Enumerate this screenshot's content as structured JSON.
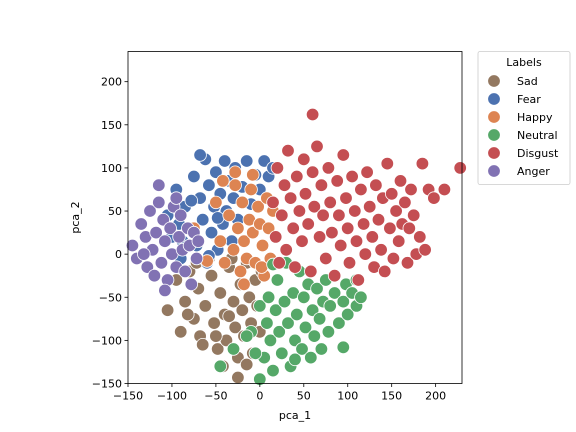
{
  "chart_data": {
    "type": "scatter",
    "title": "",
    "xlabel": "pca_1",
    "ylabel": "pca_2",
    "xlim": [
      -150,
      230
    ],
    "ylim": [
      -150,
      235
    ],
    "xticks": [
      "−150",
      "−100",
      "−50",
      "0",
      "50",
      "100",
      "150",
      "200"
    ],
    "yticks": [
      "−150",
      "−100",
      "−50",
      "0",
      "50",
      "100",
      "150",
      "200"
    ],
    "xtick_values": [
      -150,
      -100,
      -50,
      0,
      50,
      100,
      150,
      200
    ],
    "ytick_values": [
      -150,
      -100,
      -50,
      0,
      50,
      100,
      150,
      200
    ],
    "grid": false,
    "legend_title": "Labels",
    "legend_placement": "outside-top-right",
    "series": [
      {
        "name": "Sad",
        "color": "#937860",
        "points": [
          [
            -105,
            -65
          ],
          [
            -95,
            -30
          ],
          [
            -90,
            -90
          ],
          [
            -85,
            -55
          ],
          [
            -80,
            -20
          ],
          [
            -75,
            -75
          ],
          [
            -70,
            -40
          ],
          [
            -68,
            -95
          ],
          [
            -62,
            -60
          ],
          [
            -55,
            -25
          ],
          [
            -52,
            -80
          ],
          [
            -48,
            -110
          ],
          [
            -45,
            -45
          ],
          [
            -40,
            -70
          ],
          [
            -38,
            -100
          ],
          [
            -35,
            -15
          ],
          [
            -30,
            -55
          ],
          [
            -28,
            -85
          ],
          [
            -25,
            -120
          ],
          [
            -22,
            -35
          ],
          [
            -20,
            -65
          ],
          [
            -18,
            -95
          ],
          [
            -15,
            -10
          ],
          [
            -12,
            -50
          ],
          [
            -10,
            -80
          ],
          [
            -8,
            -115
          ],
          [
            -5,
            -30
          ],
          [
            -3,
            -60
          ],
          [
            0,
            -90
          ],
          [
            2,
            -20
          ],
          [
            -58,
            -5
          ],
          [
            -65,
            -105
          ],
          [
            -82,
            -70
          ],
          [
            -42,
            -130
          ],
          [
            -25,
            -143
          ],
          [
            -32,
            -5
          ],
          [
            -15,
            -128
          ],
          [
            -72,
            -10
          ],
          [
            -50,
            -95
          ],
          [
            -35,
            -72
          ]
        ]
      },
      {
        "name": "Fear",
        "color": "#4c72b0",
        "points": [
          [
            -105,
            45
          ],
          [
            -100,
            20
          ],
          [
            -95,
            75
          ],
          [
            -90,
            -5
          ],
          [
            -85,
            55
          ],
          [
            -80,
            30
          ],
          [
            -75,
            90
          ],
          [
            -72,
            10
          ],
          [
            -68,
            65
          ],
          [
            -65,
            40
          ],
          [
            -62,
            110
          ],
          [
            -60,
            -10
          ],
          [
            -58,
            80
          ],
          [
            -55,
            25
          ],
          [
            -52,
            55
          ],
          [
            -50,
            95
          ],
          [
            -48,
            5
          ],
          [
            -45,
            70
          ],
          [
            -42,
            35
          ],
          [
            -40,
            108
          ],
          [
            -38,
            50
          ],
          [
            -35,
            85
          ],
          [
            -32,
            15
          ],
          [
            -30,
            65
          ],
          [
            -28,
            100
          ],
          [
            -25,
            40
          ],
          [
            -20,
            78
          ],
          [
            -15,
            108
          ],
          [
            -10,
            58
          ],
          [
            -5,
            92
          ],
          [
            0,
            75
          ],
          [
            5,
            108
          ],
          [
            10,
            90
          ],
          [
            15,
            100
          ],
          [
            -68,
            115
          ],
          [
            -48,
            42
          ],
          [
            -88,
            15
          ],
          [
            -78,
            62
          ],
          [
            -58,
            -2
          ],
          [
            -92,
            35
          ]
        ]
      },
      {
        "name": "Happy",
        "color": "#dd8452",
        "points": [
          [
            -75,
            30
          ],
          [
            -60,
            -8
          ],
          [
            -50,
            60
          ],
          [
            -45,
            15
          ],
          [
            -40,
            -10
          ],
          [
            -35,
            45
          ],
          [
            -30,
            5
          ],
          [
            -28,
            80
          ],
          [
            -25,
            30
          ],
          [
            -22,
            -20
          ],
          [
            -20,
            60
          ],
          [
            -18,
            15
          ],
          [
            -15,
            -5
          ],
          [
            -12,
            40
          ],
          [
            -10,
            75
          ],
          [
            -8,
            25
          ],
          [
            -5,
            -10
          ],
          [
            -2,
            55
          ],
          [
            0,
            35
          ],
          [
            3,
            10
          ],
          [
            5,
            -25
          ],
          [
            8,
            65
          ],
          [
            10,
            30
          ],
          [
            12,
            -5
          ],
          [
            15,
            50
          ],
          [
            -28,
            95
          ],
          [
            -42,
            85
          ],
          [
            -18,
            -35
          ],
          [
            2,
            -15
          ],
          [
            -8,
            92
          ]
        ]
      },
      {
        "name": "Neutral",
        "color": "#55a868",
        "points": [
          [
            -45,
            -130
          ],
          [
            -30,
            -110
          ],
          [
            -10,
            -90
          ],
          [
            0,
            -60
          ],
          [
            0,
            -145
          ],
          [
            5,
            -120
          ],
          [
            8,
            -80
          ],
          [
            10,
            -50
          ],
          [
            12,
            -100
          ],
          [
            15,
            -135
          ],
          [
            18,
            -65
          ],
          [
            20,
            -30
          ],
          [
            22,
            -90
          ],
          [
            25,
            -115
          ],
          [
            28,
            -55
          ],
          [
            30,
            -10
          ],
          [
            32,
            -80
          ],
          [
            35,
            -130
          ],
          [
            38,
            -45
          ],
          [
            40,
            -100
          ],
          [
            42,
            -70
          ],
          [
            45,
            -20
          ],
          [
            48,
            -110
          ],
          [
            50,
            -50
          ],
          [
            52,
            -85
          ],
          [
            55,
            -35
          ],
          [
            58,
            -120
          ],
          [
            60,
            -65
          ],
          [
            62,
            -95
          ],
          [
            65,
            -40
          ],
          [
            68,
            -75
          ],
          [
            70,
            -110
          ],
          [
            72,
            -55
          ],
          [
            75,
            -30
          ],
          [
            78,
            -90
          ],
          [
            80,
            -60
          ],
          [
            85,
            -45
          ],
          [
            90,
            -80
          ],
          [
            95,
            -55
          ],
          [
            98,
            -35
          ],
          [
            100,
            -70
          ],
          [
            105,
            -45
          ],
          [
            110,
            -60
          ],
          [
            115,
            -50
          ],
          [
            -5,
            -115
          ],
          [
            -15,
            -95
          ],
          [
            15,
            -12
          ],
          [
            40,
            -122
          ],
          [
            95,
            -108
          ],
          [
            110,
            -30
          ]
        ]
      },
      {
        "name": "Disgust",
        "color": "#c44e52",
        "points": [
          [
            15,
            60
          ],
          [
            18,
            20
          ],
          [
            20,
            100
          ],
          [
            22,
            -10
          ],
          [
            25,
            45
          ],
          [
            28,
            80
          ],
          [
            30,
            5
          ],
          [
            32,
            120
          ],
          [
            35,
            65
          ],
          [
            38,
            30
          ],
          [
            40,
            -15
          ],
          [
            42,
            90
          ],
          [
            45,
            50
          ],
          [
            48,
            15
          ],
          [
            50,
            110
          ],
          [
            52,
            70
          ],
          [
            55,
            35
          ],
          [
            58,
            -20
          ],
          [
            60,
            95
          ],
          [
            62,
            55
          ],
          [
            65,
            125
          ],
          [
            68,
            20
          ],
          [
            70,
            80
          ],
          [
            72,
            45
          ],
          [
            75,
            -5
          ],
          [
            78,
            100
          ],
          [
            80,
            60
          ],
          [
            82,
            25
          ],
          [
            85,
            -25
          ],
          [
            88,
            85
          ],
          [
            90,
            45
          ],
          [
            92,
            10
          ],
          [
            95,
            115
          ],
          [
            98,
            65
          ],
          [
            100,
            30
          ],
          [
            102,
            -10
          ],
          [
            105,
            90
          ],
          [
            108,
            50
          ],
          [
            110,
            15
          ],
          [
            112,
            -30
          ],
          [
            115,
            75
          ],
          [
            118,
            35
          ],
          [
            120,
            0
          ],
          [
            122,
            95
          ],
          [
            125,
            55
          ],
          [
            128,
            20
          ],
          [
            130,
            -15
          ],
          [
            132,
            80
          ],
          [
            135,
            40
          ],
          [
            138,
            5
          ],
          [
            140,
            65
          ],
          [
            142,
            -20
          ],
          [
            145,
            105
          ],
          [
            148,
            30
          ],
          [
            150,
            70
          ],
          [
            152,
            -5
          ],
          [
            155,
            50
          ],
          [
            158,
            15
          ],
          [
            160,
            85
          ],
          [
            162,
            35
          ],
          [
            165,
            60
          ],
          [
            168,
            -10
          ],
          [
            170,
            30
          ],
          [
            172,
            75
          ],
          [
            175,
            45
          ],
          [
            178,
            0
          ],
          [
            182,
            20
          ],
          [
            185,
            105
          ],
          [
            188,
            5
          ],
          [
            192,
            75
          ],
          [
            198,
            65
          ],
          [
            210,
            75
          ],
          [
            228,
            100
          ],
          [
            60,
            162
          ],
          [
            210,
            75
          ]
        ]
      },
      {
        "name": "Anger",
        "color": "#8172b3",
        "points": [
          [
            -145,
            10
          ],
          [
            -140,
            -5
          ],
          [
            -135,
            35
          ],
          [
            -130,
            20
          ],
          [
            -128,
            -15
          ],
          [
            -125,
            50
          ],
          [
            -122,
            5
          ],
          [
            -120,
            -25
          ],
          [
            -118,
            25
          ],
          [
            -115,
            60
          ],
          [
            -112,
            -10
          ],
          [
            -110,
            40
          ],
          [
            -108,
            15
          ],
          [
            -105,
            -30
          ],
          [
            -102,
            30
          ],
          [
            -100,
            0
          ],
          [
            -98,
            55
          ],
          [
            -95,
            -15
          ],
          [
            -92,
            20
          ],
          [
            -90,
            45
          ],
          [
            -88,
            5
          ],
          [
            -85,
            -20
          ],
          [
            -82,
            30
          ],
          [
            -80,
            10
          ],
          [
            -78,
            -35
          ],
          [
            -75,
            25
          ],
          [
            -72,
            -5
          ],
          [
            -70,
            15
          ],
          [
            -115,
            80
          ],
          [
            -132,
            0
          ],
          [
            -108,
            -42
          ],
          [
            -95,
            65
          ]
        ]
      }
    ]
  }
}
